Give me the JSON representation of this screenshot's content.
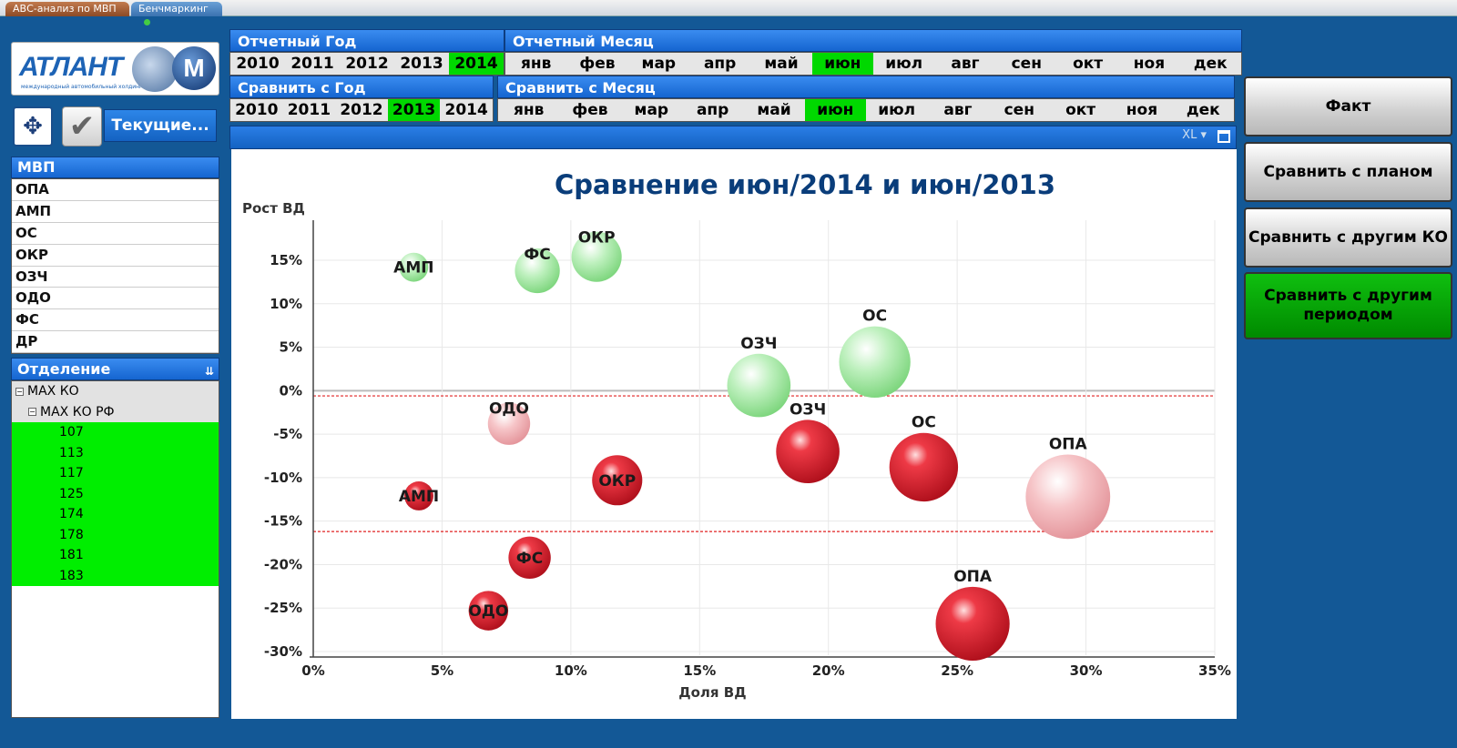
{
  "tabs": [
    {
      "label": "АВС-анализ по МВП"
    },
    {
      "label": "Бенчмаркинг"
    }
  ],
  "logo": {
    "text": "АТЛАНТ",
    "sub": "международный автомобильный холдинг",
    "mark": "М"
  },
  "toolbar": {
    "current_label": "Текущие..."
  },
  "mvp": {
    "header": "МВП",
    "items": [
      "ОПА",
      "АМП",
      "ОС",
      "ОКР",
      "ОЗЧ",
      "ОДО",
      "ФС",
      "ДР"
    ]
  },
  "dept": {
    "header": "Отделение",
    "root": "МАХ КО",
    "child": "МАХ КО РФ",
    "items": [
      "107",
      "113",
      "117",
      "125",
      "174",
      "178",
      "181",
      "183"
    ]
  },
  "year": {
    "header": "Отчетный Год",
    "options": [
      "2010",
      "2011",
      "2012",
      "2013",
      "2014"
    ],
    "selected": "2014"
  },
  "month": {
    "header": "Отчетный Месяц",
    "options": [
      "янв",
      "фев",
      "мар",
      "апр",
      "май",
      "июн",
      "июл",
      "авг",
      "сен",
      "окт",
      "ноя",
      "дек"
    ],
    "selected": "июн"
  },
  "cmp_year": {
    "header": "Сравнить с Год",
    "options": [
      "2010",
      "2011",
      "2012",
      "2013",
      "2014"
    ],
    "selected": "2013"
  },
  "cmp_month": {
    "header": "Сравнить с Месяц",
    "options": [
      "янв",
      "фев",
      "мар",
      "апр",
      "май",
      "июн",
      "июл",
      "авг",
      "сен",
      "окт",
      "ноя",
      "дек"
    ],
    "selected": "июн"
  },
  "chart_header": {
    "xl": "XL"
  },
  "right_buttons": {
    "fact": "Факт",
    "plan": "Сравнить с планом",
    "ko": "Сравнить с другим КО",
    "period": "Сравнить с другим периодом"
  },
  "colors": {
    "green_bubble": "#8ee08e",
    "red_bubble": "#d81e2a",
    "pink_bubble": "#f0a8ad",
    "accent": "#1565d0",
    "selected": "#00d800"
  },
  "chart_data": {
    "type": "bubble",
    "title": "Сравнение июн/2014  и  июн/2013",
    "xlabel": "Доля ВД",
    "ylabel": "Рост ВД",
    "xlim": [
      0,
      35
    ],
    "ylim": [
      -30,
      18
    ],
    "xticks": [
      "0%",
      "5%",
      "10%",
      "15%",
      "20%",
      "25%",
      "30%",
      "35%"
    ],
    "yticks": [
      "15%",
      "10%",
      "5%",
      "0%",
      "-5%",
      "-10%",
      "-15%",
      "-20%",
      "-25%",
      "-30%"
    ],
    "reference_lines": [
      -0.6,
      -16.2
    ],
    "points": [
      {
        "label": "АМП",
        "x": 3.9,
        "y": 14.2,
        "size": 1.1,
        "color": "green"
      },
      {
        "label": "ФС",
        "x": 8.7,
        "y": 13.8,
        "size": 1.7,
        "color": "green"
      },
      {
        "label": "ОКР",
        "x": 11.0,
        "y": 15.4,
        "size": 1.9,
        "color": "green"
      },
      {
        "label": "ОЗЧ",
        "x": 17.3,
        "y": 0.6,
        "size": 2.4,
        "color": "green"
      },
      {
        "label": "ОС",
        "x": 21.8,
        "y": 3.3,
        "size": 2.7,
        "color": "green"
      },
      {
        "label": "ОДО",
        "x": 7.6,
        "y": -3.8,
        "size": 1.6,
        "color": "pink"
      },
      {
        "label": "ОПА",
        "x": 29.3,
        "y": -12.2,
        "size": 3.2,
        "color": "pink"
      },
      {
        "label": "ОЗЧ",
        "x": 19.2,
        "y": -7.0,
        "size": 2.4,
        "color": "red"
      },
      {
        "label": "ОС",
        "x": 23.7,
        "y": -8.8,
        "size": 2.6,
        "color": "red"
      },
      {
        "label": "ОКР",
        "x": 11.8,
        "y": -10.3,
        "size": 1.9,
        "color": "red"
      },
      {
        "label": "АМП",
        "x": 4.1,
        "y": -12.1,
        "size": 1.1,
        "color": "red"
      },
      {
        "label": "ФС",
        "x": 8.4,
        "y": -19.2,
        "size": 1.6,
        "color": "red"
      },
      {
        "label": "ОДО",
        "x": 6.8,
        "y": -25.3,
        "size": 1.5,
        "color": "red"
      },
      {
        "label": "ОПА",
        "x": 25.6,
        "y": -26.8,
        "size": 2.8,
        "color": "red"
      }
    ]
  }
}
